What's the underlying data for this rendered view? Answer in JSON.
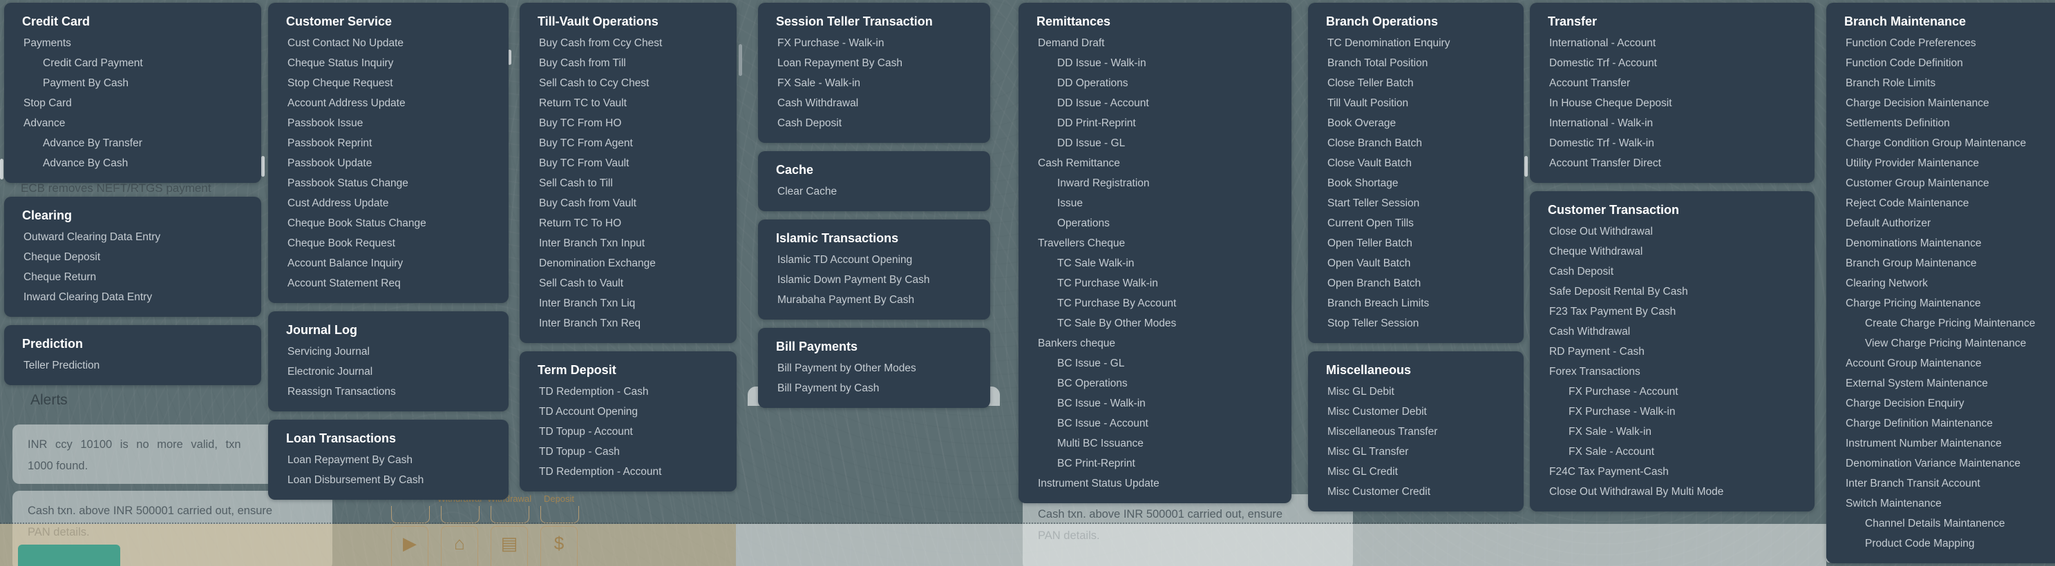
{
  "colors": {
    "backdrop": "#5C6E72",
    "panel_bg": "#2F3E4D",
    "header_text": "#FFFFFF",
    "item_text": "#C5CCD2",
    "alert_text": "#525E64",
    "beige_band": "#D8C6A2",
    "tan_accent": "#A08352",
    "teal_card": "#47A08C"
  },
  "background": {
    "ticker_text": "ECB removes NEFT/RTGS payment",
    "alerts_title": "Alerts",
    "alert_cards": [
      {
        "lines": [
          "INR ccy 10100 is no more valid, txn",
          "1000 found."
        ]
      },
      {
        "lines": [
          "Cash txn. above INR 500001 carried out, ensure",
          "PAN details."
        ]
      },
      {
        "lines": [
          "Cash txn. above INR 500001 carried out, ensure",
          "PAN details."
        ]
      }
    ],
    "tile_labels": [
      "Withdrawal",
      "Withdrawal",
      "Deposit"
    ],
    "tile_icons": [
      {
        "name": "play-icon",
        "glyph": "▶"
      },
      {
        "name": "home-icon",
        "glyph": "⌂"
      },
      {
        "name": "card-payment-icon",
        "glyph": "▤"
      },
      {
        "name": "cash-payment-icon",
        "glyph": "$"
      }
    ]
  },
  "menu": {
    "columns": [
      {
        "sections": [
          {
            "title": "Credit Card",
            "items": [
              {
                "label": "Payments",
                "level": 1
              },
              {
                "label": "Credit Card Payment",
                "level": 2
              },
              {
                "label": "Payment By Cash",
                "level": 2
              },
              {
                "label": "Stop Card",
                "level": 1
              },
              {
                "label": "Advance",
                "level": 1
              },
              {
                "label": "Advance By Transfer",
                "level": 2
              },
              {
                "label": "Advance By Cash",
                "level": 2
              }
            ]
          },
          {
            "title": "Clearing",
            "items": [
              {
                "label": "Outward Clearing Data Entry",
                "level": 1
              },
              {
                "label": "Cheque Deposit",
                "level": 1
              },
              {
                "label": "Cheque Return",
                "level": 1
              },
              {
                "label": "Inward Clearing Data Entry",
                "level": 1
              }
            ]
          },
          {
            "title": "Prediction",
            "items": [
              {
                "label": "Teller Prediction",
                "level": 1
              }
            ]
          }
        ]
      },
      {
        "sections": [
          {
            "title": "Customer Service",
            "items": [
              {
                "label": "Cust Contact No Update",
                "level": 1
              },
              {
                "label": "Cheque Status Inquiry",
                "level": 1
              },
              {
                "label": "Stop Cheque Request",
                "level": 1
              },
              {
                "label": "Account Address Update",
                "level": 1
              },
              {
                "label": "Passbook Issue",
                "level": 1
              },
              {
                "label": "Passbook Reprint",
                "level": 1
              },
              {
                "label": "Passbook Update",
                "level": 1
              },
              {
                "label": "Passbook Status Change",
                "level": 1
              },
              {
                "label": "Cust Address Update",
                "level": 1
              },
              {
                "label": "Cheque Book Status Change",
                "level": 1
              },
              {
                "label": "Cheque Book Request",
                "level": 1
              },
              {
                "label": "Account Balance Inquiry",
                "level": 1
              },
              {
                "label": "Account Statement Req",
                "level": 1
              }
            ]
          },
          {
            "title": "Journal Log",
            "items": [
              {
                "label": "Servicing Journal",
                "level": 1
              },
              {
                "label": "Electronic Journal",
                "level": 1
              },
              {
                "label": "Reassign Transactions",
                "level": 1
              }
            ]
          },
          {
            "title": "Loan Transactions",
            "items": [
              {
                "label": "Loan Repayment By Cash",
                "level": 1
              },
              {
                "label": "Loan Disbursement By Cash",
                "level": 1
              }
            ]
          }
        ]
      },
      {
        "sections": [
          {
            "title": "Till-Vault Operations",
            "items": [
              {
                "label": "Buy Cash from Ccy Chest",
                "level": 1
              },
              {
                "label": "Buy Cash from Till",
                "level": 1
              },
              {
                "label": "Sell Cash to Ccy Chest",
                "level": 1
              },
              {
                "label": "Return TC to Vault",
                "level": 1
              },
              {
                "label": "Buy TC From HO",
                "level": 1
              },
              {
                "label": "Buy TC From Agent",
                "level": 1
              },
              {
                "label": "Buy TC From Vault",
                "level": 1
              },
              {
                "label": "Sell Cash to Till",
                "level": 1
              },
              {
                "label": "Buy Cash from Vault",
                "level": 1
              },
              {
                "label": "Return TC To HO",
                "level": 1
              },
              {
                "label": "Inter Branch Txn Input",
                "level": 1
              },
              {
                "label": "Denomination Exchange",
                "level": 1
              },
              {
                "label": "Sell Cash to Vault",
                "level": 1
              },
              {
                "label": "Inter Branch Txn Liq",
                "level": 1
              },
              {
                "label": "Inter Branch Txn Req",
                "level": 1
              }
            ]
          },
          {
            "title": "Term Deposit",
            "items": [
              {
                "label": "TD Redemption - Cash",
                "level": 1
              },
              {
                "label": "TD Account Opening",
                "level": 1
              },
              {
                "label": "TD Topup - Account",
                "level": 1
              },
              {
                "label": "TD Topup - Cash",
                "level": 1
              },
              {
                "label": "TD Redemption - Account",
                "level": 1
              }
            ]
          }
        ]
      },
      {
        "sections": [
          {
            "title": "Session Teller Transaction",
            "items": [
              {
                "label": "FX Purchase - Walk-in",
                "level": 1
              },
              {
                "label": "Loan Repayment By Cash",
                "level": 1
              },
              {
                "label": "FX Sale - Walk-in",
                "level": 1
              },
              {
                "label": "Cash Withdrawal",
                "level": 1
              },
              {
                "label": "Cash Deposit",
                "level": 1
              }
            ]
          },
          {
            "title": "Cache",
            "items": [
              {
                "label": "Clear Cache",
                "level": 1
              }
            ]
          },
          {
            "title": "Islamic Transactions",
            "items": [
              {
                "label": "Islamic TD Account Opening",
                "level": 1
              },
              {
                "label": "Islamic Down Payment By Cash",
                "level": 1
              },
              {
                "label": "Murabaha Payment By Cash",
                "level": 1
              }
            ]
          },
          {
            "title": "Bill Payments",
            "items": [
              {
                "label": "Bill Payment by Other Modes",
                "level": 1
              },
              {
                "label": "Bill Payment by Cash",
                "level": 1
              }
            ]
          }
        ]
      },
      {
        "sections": [
          {
            "title": "Remittances",
            "items": [
              {
                "label": "Demand Draft",
                "level": 1
              },
              {
                "label": "DD Issue - Walk-in",
                "level": 2
              },
              {
                "label": "DD Operations",
                "level": 2
              },
              {
                "label": "DD Issue - Account",
                "level": 2
              },
              {
                "label": "DD Print-Reprint",
                "level": 2
              },
              {
                "label": "DD Issue - GL",
                "level": 2
              },
              {
                "label": "Cash Remittance",
                "level": 1
              },
              {
                "label": "Inward Registration",
                "level": 2
              },
              {
                "label": "Issue",
                "level": 2
              },
              {
                "label": "Operations",
                "level": 2
              },
              {
                "label": "Travellers Cheque",
                "level": 1
              },
              {
                "label": "TC Sale Walk-in",
                "level": 2
              },
              {
                "label": "TC Purchase Walk-in",
                "level": 2
              },
              {
                "label": "TC Purchase By Account",
                "level": 2
              },
              {
                "label": "TC Sale By Other Modes",
                "level": 2
              },
              {
                "label": "Bankers cheque",
                "level": 1
              },
              {
                "label": "BC Issue - GL",
                "level": 2
              },
              {
                "label": "BC Operations",
                "level": 2
              },
              {
                "label": "BC Issue - Walk-in",
                "level": 2
              },
              {
                "label": "BC Issue - Account",
                "level": 2
              },
              {
                "label": "Multi BC Issuance",
                "level": 2
              },
              {
                "label": "BC Print-Reprint",
                "level": 2
              },
              {
                "label": "Instrument Status Update",
                "level": 1
              }
            ]
          }
        ]
      },
      {
        "sections": [
          {
            "title": "Branch Operations",
            "items": [
              {
                "label": "TC Denomination Enquiry",
                "level": 1
              },
              {
                "label": "Branch Total Position",
                "level": 1
              },
              {
                "label": "Close Teller Batch",
                "level": 1
              },
              {
                "label": "Till Vault Position",
                "level": 1
              },
              {
                "label": "Book Overage",
                "level": 1
              },
              {
                "label": "Close Branch Batch",
                "level": 1
              },
              {
                "label": "Close Vault Batch",
                "level": 1
              },
              {
                "label": "Book Shortage",
                "level": 1
              },
              {
                "label": "Start Teller Session",
                "level": 1
              },
              {
                "label": "Current Open Tills",
                "level": 1
              },
              {
                "label": "Open Teller Batch",
                "level": 1
              },
              {
                "label": "Open Vault Batch",
                "level": 1
              },
              {
                "label": "Open Branch Batch",
                "level": 1
              },
              {
                "label": "Branch Breach Limits",
                "level": 1
              },
              {
                "label": "Stop Teller Session",
                "level": 1
              }
            ]
          },
          {
            "title": "Miscellaneous",
            "items": [
              {
                "label": "Misc GL Debit",
                "level": 1
              },
              {
                "label": "Misc Customer Debit",
                "level": 1
              },
              {
                "label": "Miscellaneous Transfer",
                "level": 1
              },
              {
                "label": "Misc GL Transfer",
                "level": 1
              },
              {
                "label": "Misc GL Credit",
                "level": 1
              },
              {
                "label": "Misc Customer Credit",
                "level": 1
              }
            ]
          }
        ]
      },
      {
        "sections": [
          {
            "title": "Transfer",
            "items": [
              {
                "label": "International - Account",
                "level": 1
              },
              {
                "label": "Domestic Trf - Account",
                "level": 1
              },
              {
                "label": "Account Transfer",
                "level": 1
              },
              {
                "label": "In House Cheque Deposit",
                "level": 1
              },
              {
                "label": "International - Walk-in",
                "level": 1
              },
              {
                "label": "Domestic Trf - Walk-in",
                "level": 1
              },
              {
                "label": "Account Transfer Direct",
                "level": 1
              }
            ]
          },
          {
            "title": "Customer Transaction",
            "items": [
              {
                "label": "Close Out Withdrawal",
                "level": 1
              },
              {
                "label": "Cheque Withdrawal",
                "level": 1
              },
              {
                "label": "Cash Deposit",
                "level": 1
              },
              {
                "label": "Safe Deposit Rental By Cash",
                "level": 1
              },
              {
                "label": "F23 Tax Payment By Cash",
                "level": 1
              },
              {
                "label": "Cash Withdrawal",
                "level": 1
              },
              {
                "label": "RD Payment - Cash",
                "level": 1
              },
              {
                "label": "Forex Transactions",
                "level": 1
              },
              {
                "label": "FX Purchase - Account",
                "level": 2
              },
              {
                "label": "FX Purchase - Walk-in",
                "level": 2
              },
              {
                "label": "FX Sale - Walk-in",
                "level": 2
              },
              {
                "label": "FX Sale - Account",
                "level": 2
              },
              {
                "label": "F24C Tax Payment-Cash",
                "level": 1
              },
              {
                "label": "Close Out Withdrawal By Multi Mode",
                "level": 1
              }
            ]
          }
        ]
      },
      {
        "sections": [
          {
            "title": "Branch Maintenance",
            "items": [
              {
                "label": "Function Code Preferences",
                "level": 1
              },
              {
                "label": "Function Code Definition",
                "level": 1
              },
              {
                "label": "Branch Role Limits",
                "level": 1
              },
              {
                "label": "Charge Decision Maintenance",
                "level": 1
              },
              {
                "label": "Settlements Definition",
                "level": 1
              },
              {
                "label": "Charge Condition Group Maintenance",
                "level": 1
              },
              {
                "label": "Utility Provider Maintenance",
                "level": 1
              },
              {
                "label": "Customer Group Maintenance",
                "level": 1
              },
              {
                "label": "Reject Code Maintenance",
                "level": 1
              },
              {
                "label": "Default Authorizer",
                "level": 1
              },
              {
                "label": "Denominations Maintenance",
                "level": 1
              },
              {
                "label": "Branch Group Maintenance",
                "level": 1
              },
              {
                "label": "Clearing Network",
                "level": 1
              },
              {
                "label": "Charge Pricing Maintenance",
                "level": 1
              },
              {
                "label": "Create Charge Pricing Maintenance",
                "level": 2
              },
              {
                "label": "View Charge Pricing Maintenance",
                "level": 2
              },
              {
                "label": "Account Group Maintenance",
                "level": 1
              },
              {
                "label": "External System Maintenance",
                "level": 1
              },
              {
                "label": "Charge Decision Enquiry",
                "level": 1
              },
              {
                "label": "Charge Definition Maintenance",
                "level": 1
              },
              {
                "label": "Instrument Number Maintenance",
                "level": 1
              },
              {
                "label": "Denomination Variance Maintenance",
                "level": 1
              },
              {
                "label": "Inter Branch Transit Account",
                "level": 1
              },
              {
                "label": "Switch Maintenance",
                "level": 1
              },
              {
                "label": "Channel Details Maintanence",
                "level": 2
              },
              {
                "label": "Product Code Mapping",
                "level": 2
              }
            ]
          }
        ]
      }
    ]
  }
}
